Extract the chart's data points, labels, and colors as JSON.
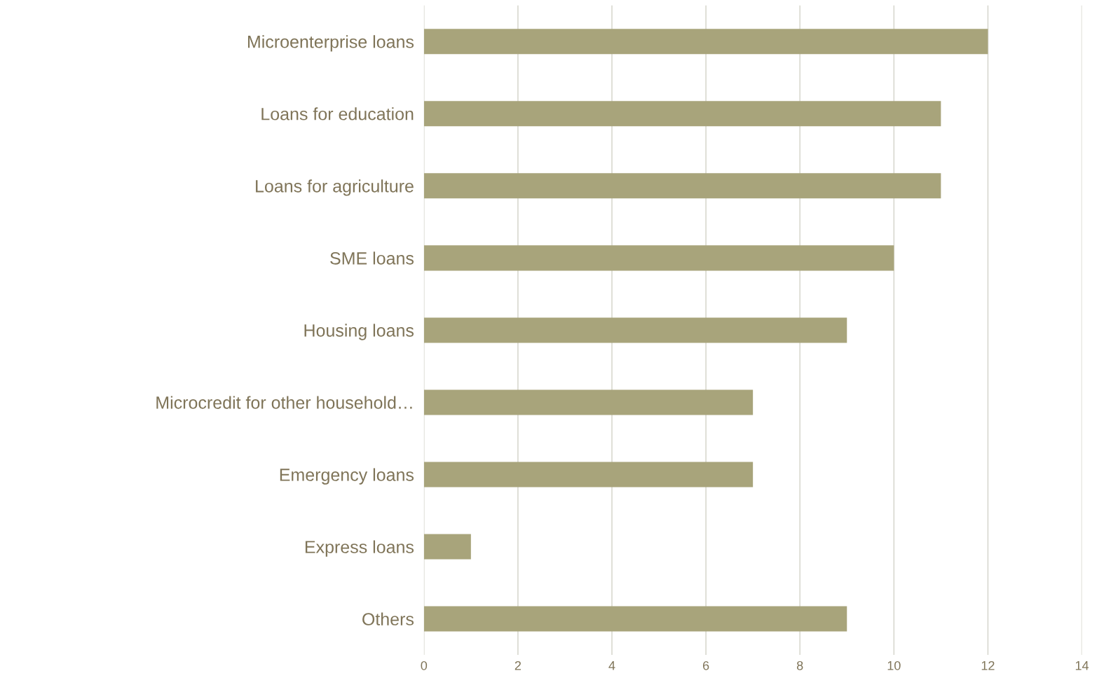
{
  "chart_data": {
    "type": "bar",
    "orientation": "horizontal",
    "categories": [
      "Microenterprise loans",
      "Loans for education",
      "Loans for agriculture",
      "SME loans",
      "Housing loans",
      "Microcredit for other household…",
      "Emergency loans",
      "Express loans",
      "Others"
    ],
    "values": [
      12,
      11,
      11,
      10,
      9,
      7,
      7,
      1,
      9
    ],
    "color": "#a8a47b",
    "xlim": [
      0,
      14
    ],
    "xticks": [
      0,
      2,
      4,
      6,
      8,
      10,
      12,
      14
    ],
    "grid": "x"
  }
}
